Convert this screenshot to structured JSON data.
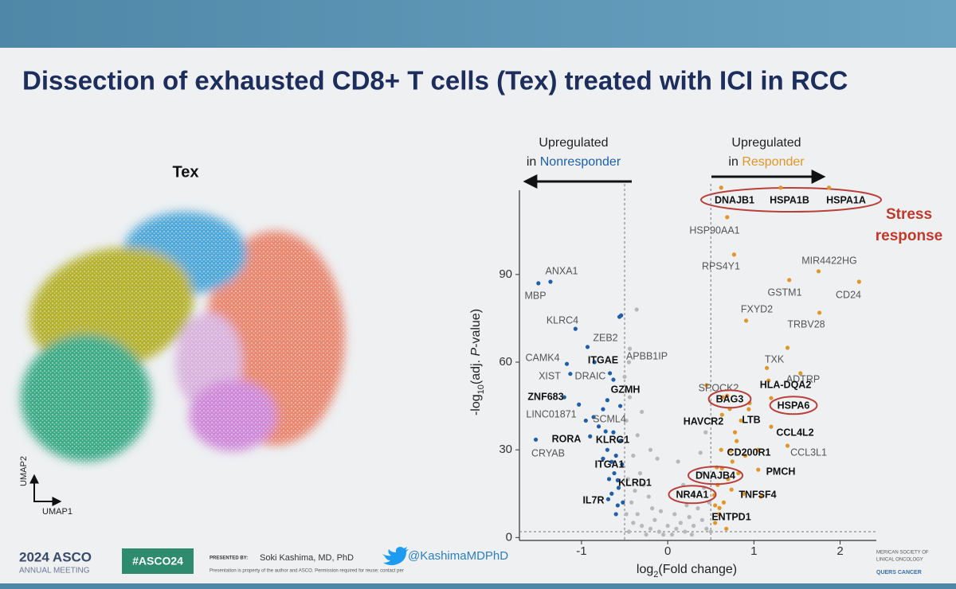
{
  "slide": {
    "title": "Dissection of exhausted CD8+ T cells (Tex) treated with ICI in RCC",
    "footer": {
      "meeting": "2024 ASCO",
      "meeting_sub": "ANNUAL MEETING",
      "hashtag": "#ASCO24",
      "presented_by": "PRESENTED BY:",
      "presenter": "Soki Kashima, MD, PhD",
      "handle": "@KashimaMDPhD",
      "disclaimer": "Presentation is property of the author and ASCO. Permission required for reuse; contact per",
      "society_1": "MERICAN SOCIETY OF",
      "society_2": "LINICAL ONCOLOGY",
      "society_3": "QUERS CANCER"
    }
  },
  "umap": {
    "title": "Tex",
    "x_label": "UMAP1",
    "y_label": "UMAP2"
  },
  "chart_data": {
    "type": "scatter",
    "xlim": [
      -1.72,
      2.42
    ],
    "ylim": [
      -1,
      121
    ],
    "xticks": [
      -1,
      0,
      1,
      2
    ],
    "yticks": [
      0,
      30,
      60,
      90
    ],
    "x_label_parts": [
      "log",
      "2",
      "(Fold change)"
    ],
    "y_label_parts": [
      "-log",
      "10",
      "(adj. ",
      "P",
      "-value)"
    ],
    "thresholds": {
      "x": [
        -0.5,
        0.5
      ],
      "y": 2
    },
    "left_note": [
      "Upregulated",
      "in ",
      "Nonresponder"
    ],
    "right_note": [
      "Upregulated",
      "in ",
      "Responder"
    ],
    "callout": [
      "Stress",
      "response"
    ],
    "series": [
      {
        "color": "#1f5fa8",
        "points": [
          {
            "x": -1.36,
            "y": 87.5,
            "label": "ANXA1"
          },
          {
            "x": -1.5,
            "y": 87,
            "label": "MBP"
          },
          {
            "x": -1.07,
            "y": 71.4,
            "label": "KLRC4"
          },
          {
            "x": -0.56,
            "y": 75.5,
            "label": "ZEB2"
          },
          {
            "x": -1.17,
            "y": 59.4,
            "label": "CAMK4"
          },
          {
            "x": -0.93,
            "y": 65.2,
            "label": "ITGAE",
            "bold": true
          },
          {
            "x": -1.13,
            "y": 56,
            "label": "XIST"
          },
          {
            "x": -0.67,
            "y": 56.2,
            "label": "DRAIC"
          },
          {
            "x": -0.63,
            "y": 54,
            "label": "GZMH",
            "bold": true
          },
          {
            "x": -1.03,
            "y": 45.5,
            "label": "ZNF683",
            "bold": true
          },
          {
            "x": -0.86,
            "y": 41.2,
            "label": "LINC01871"
          },
          {
            "x": -0.75,
            "y": 43.9,
            "label": "SCML4"
          },
          {
            "x": -0.9,
            "y": 34.6,
            "label": "RORA",
            "bold": true
          },
          {
            "x": -0.72,
            "y": 36.3,
            "label": "KLRG1",
            "bold": true
          },
          {
            "x": -1.53,
            "y": 33.5,
            "label": "CRYAB"
          },
          {
            "x": -0.65,
            "y": 25.9,
            "label": "ITGA1",
            "bold": true
          },
          {
            "x": -0.58,
            "y": 19.6,
            "label": "KLRD1",
            "bold": true
          },
          {
            "x": -0.69,
            "y": 13.1,
            "label": "IL7R",
            "bold": true
          },
          {
            "x": -0.55,
            "y": 33
          },
          {
            "x": -0.6,
            "y": 28
          },
          {
            "x": -0.62,
            "y": 22
          },
          {
            "x": -0.57,
            "y": 17
          },
          {
            "x": -0.65,
            "y": 15
          },
          {
            "x": -0.52,
            "y": 12
          },
          {
            "x": -0.7,
            "y": 30
          },
          {
            "x": -0.8,
            "y": 38
          },
          {
            "x": -0.55,
            "y": 45
          },
          {
            "x": -0.95,
            "y": 40
          },
          {
            "x": -0.6,
            "y": 8
          },
          {
            "x": -0.53,
            "y": 25
          },
          {
            "x": -0.68,
            "y": 20
          },
          {
            "x": -0.75,
            "y": 27
          },
          {
            "x": -1.2,
            "y": 48
          },
          {
            "x": -0.85,
            "y": 60
          },
          {
            "x": -0.54,
            "y": 76
          },
          {
            "x": -0.7,
            "y": 47
          },
          {
            "x": -0.58,
            "y": 11
          },
          {
            "x": -0.63,
            "y": 36
          }
        ]
      },
      {
        "color": "#e0962a",
        "points": [
          {
            "x": 0.62,
            "y": 119.7,
            "label": "DNAJB1",
            "bold": true
          },
          {
            "x": 1.31,
            "y": 119.7,
            "label": "HSPA1B",
            "bold": true
          },
          {
            "x": 1.87,
            "y": 119.7,
            "label": "HSPA1A",
            "bold": true
          },
          {
            "x": 0.69,
            "y": 109.6,
            "label": "HSP90AA1"
          },
          {
            "x": 0.77,
            "y": 96.8,
            "label": "RPS4Y1"
          },
          {
            "x": 1.75,
            "y": 91.1,
            "label": "MIR4422HG"
          },
          {
            "x": 1.41,
            "y": 88.1,
            "label": "GSTM1"
          },
          {
            "x": 2.22,
            "y": 87.5,
            "label": "CD24"
          },
          {
            "x": 0.91,
            "y": 74.2,
            "label": "FXYD2"
          },
          {
            "x": 1.76,
            "y": 76.9,
            "label": "TRBV28"
          },
          {
            "x": 1.39,
            "y": 64.9,
            "label": "TXK"
          },
          {
            "x": 1.54,
            "y": 56.2,
            "label": "ADTRP"
          },
          {
            "x": 0.45,
            "y": 52.1,
            "label": "SPOCK2"
          },
          {
            "x": 1.17,
            "y": 53.7,
            "label": "HLA-DQA2",
            "bold": true
          },
          {
            "x": 0.69,
            "y": 48.5,
            "label": "BAG3",
            "bold": true,
            "circled": true
          },
          {
            "x": 1.2,
            "y": 47.7,
            "label": "HSPA6",
            "bold": true,
            "circled": true
          },
          {
            "x": 0.63,
            "y": 42,
            "label": "HAVCR2",
            "bold": true
          },
          {
            "x": 0.94,
            "y": 43.9,
            "label": "LTB",
            "bold": true
          },
          {
            "x": 1.2,
            "y": 37.9,
            "label": "CCL4L2",
            "bold": true
          },
          {
            "x": 0.73,
            "y": 29.7,
            "label": "CD200R1",
            "bold": true
          },
          {
            "x": 1.39,
            "y": 31.4,
            "label": "CCL3L1"
          },
          {
            "x": 0.63,
            "y": 23.7,
            "label": "DNAJB4",
            "bold": true,
            "circled": true
          },
          {
            "x": 1.05,
            "y": 23.2,
            "label": "PMCH",
            "bold": true
          },
          {
            "x": 0.54,
            "y": 14.5,
            "label": "NR4A1",
            "bold": true,
            "circled": true
          },
          {
            "x": 0.74,
            "y": 16.4,
            "label": "TNFSF4",
            "bold": true
          },
          {
            "x": 0.6,
            "y": 10.1,
            "label": "ENTPD1",
            "bold": true
          },
          {
            "x": 0.55,
            "y": 5
          },
          {
            "x": 0.6,
            "y": 8
          },
          {
            "x": 0.65,
            "y": 12
          },
          {
            "x": 0.7,
            "y": 20
          },
          {
            "x": 0.75,
            "y": 26
          },
          {
            "x": 0.8,
            "y": 33
          },
          {
            "x": 0.85,
            "y": 40
          },
          {
            "x": 0.62,
            "y": 30
          },
          {
            "x": 0.58,
            "y": 18
          },
          {
            "x": 0.9,
            "y": 28
          },
          {
            "x": 0.72,
            "y": 44
          },
          {
            "x": 0.55,
            "y": 11
          },
          {
            "x": 0.68,
            "y": 3
          },
          {
            "x": 1.05,
            "y": 30
          },
          {
            "x": 0.82,
            "y": 22
          },
          {
            "x": 0.95,
            "y": 46
          },
          {
            "x": 1.15,
            "y": 58
          },
          {
            "x": 0.78,
            "y": 36
          },
          {
            "x": 0.64,
            "y": 48
          },
          {
            "x": 0.88,
            "y": 15
          },
          {
            "x": 1.08,
            "y": 14
          },
          {
            "x": 0.57,
            "y": 24
          }
        ]
      },
      {
        "color": "#b8b8b8",
        "points": [
          {
            "x": -0.44,
            "y": 64.6,
            "label": "APBB1IP"
          },
          {
            "x": -0.45,
            "y": 2
          },
          {
            "x": -0.4,
            "y": 5
          },
          {
            "x": -0.35,
            "y": 8
          },
          {
            "x": -0.3,
            "y": 4
          },
          {
            "x": -0.25,
            "y": 1
          },
          {
            "x": -0.2,
            "y": 3
          },
          {
            "x": -0.15,
            "y": 6
          },
          {
            "x": -0.1,
            "y": 2
          },
          {
            "x": -0.05,
            "y": 1
          },
          {
            "x": 0.05,
            "y": 1
          },
          {
            "x": 0.1,
            "y": 3
          },
          {
            "x": 0.15,
            "y": 5
          },
          {
            "x": 0.2,
            "y": 2
          },
          {
            "x": 0.25,
            "y": 7
          },
          {
            "x": 0.3,
            "y": 4
          },
          {
            "x": 0.35,
            "y": 10
          },
          {
            "x": 0.4,
            "y": 6
          },
          {
            "x": 0.45,
            "y": 3
          },
          {
            "x": 0.48,
            "y": 12
          },
          {
            "x": -0.42,
            "y": 12
          },
          {
            "x": -0.38,
            "y": 16
          },
          {
            "x": -0.32,
            "y": 22
          },
          {
            "x": -0.28,
            "y": 18
          },
          {
            "x": -0.22,
            "y": 14
          },
          {
            "x": -0.18,
            "y": 10
          },
          {
            "x": -0.12,
            "y": 27
          },
          {
            "x": -0.35,
            "y": 35
          },
          {
            "x": -0.4,
            "y": 28
          },
          {
            "x": -0.46,
            "y": 20
          },
          {
            "x": -0.48,
            "y": 40
          },
          {
            "x": -0.3,
            "y": 43
          },
          {
            "x": -0.44,
            "y": 48
          },
          {
            "x": -0.5,
            "y": 55
          },
          {
            "x": -0.36,
            "y": 78
          },
          {
            "x": -0.45,
            "y": 60
          },
          {
            "x": -0.2,
            "y": 30
          },
          {
            "x": 0.3,
            "y": 15
          },
          {
            "x": 0.4,
            "y": 22
          },
          {
            "x": 0.42,
            "y": 17
          },
          {
            "x": 0.22,
            "y": 11
          },
          {
            "x": 0.18,
            "y": 18
          },
          {
            "x": -0.08,
            "y": 9
          },
          {
            "x": 0,
            "y": 4
          },
          {
            "x": 0.08,
            "y": 8
          },
          {
            "x": -0.48,
            "y": 8
          },
          {
            "x": 0.12,
            "y": 26
          },
          {
            "x": 0.44,
            "y": 36
          },
          {
            "x": 0.38,
            "y": 29
          },
          {
            "x": 0.5,
            "y": 2
          },
          {
            "x": 0.28,
            "y": 1
          }
        ]
      }
    ]
  }
}
